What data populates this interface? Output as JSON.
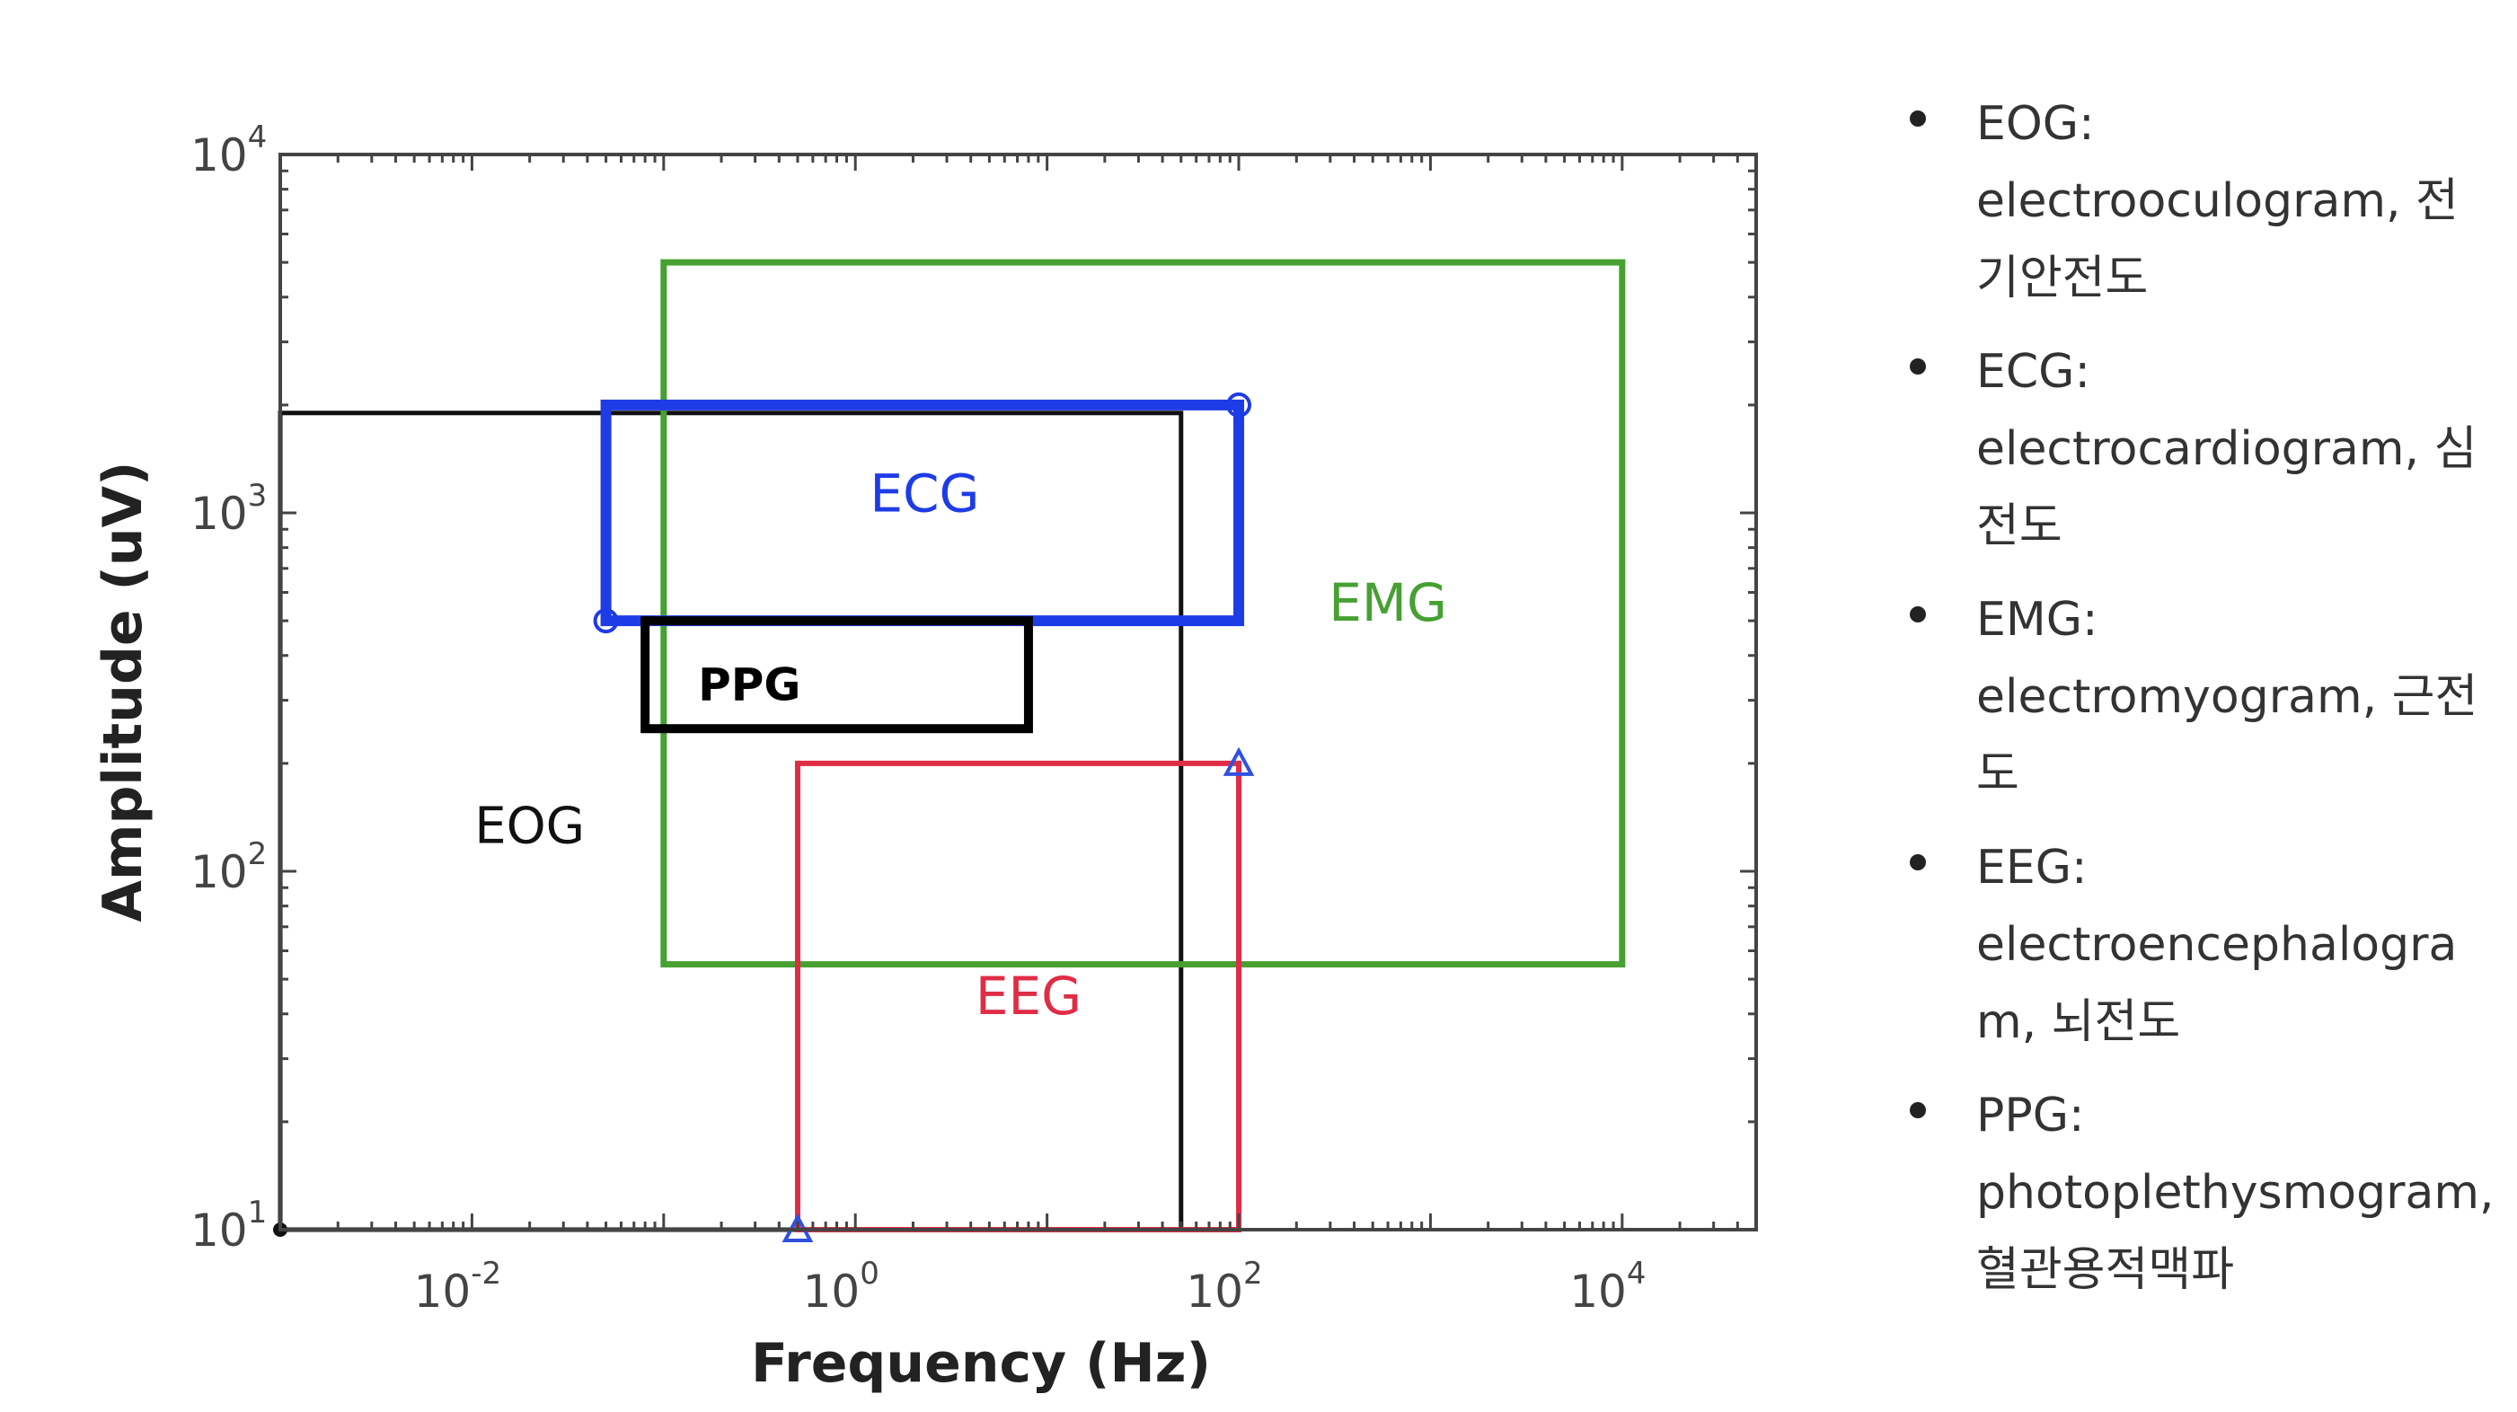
{
  "chart_data": {
    "type": "range-boxes",
    "xlabel": "Frequency (Hz)",
    "ylabel": "Amplitude (uV)",
    "x_scale": "log",
    "y_scale": "log",
    "xlim": [
      0.001,
      50000
    ],
    "ylim": [
      10,
      10000
    ],
    "x_ticks": [
      0.01,
      1,
      100,
      10000
    ],
    "y_ticks": [
      10,
      100,
      1000,
      10000
    ],
    "x_tick_labels": [
      {
        "base": "10",
        "exp": "-2"
      },
      {
        "base": "10",
        "exp": "0"
      },
      {
        "base": "10",
        "exp": "2"
      },
      {
        "base": "10",
        "exp": "4"
      }
    ],
    "y_tick_labels": [
      {
        "base": "10",
        "exp": "1"
      },
      {
        "base": "10",
        "exp": "2"
      },
      {
        "base": "10",
        "exp": "3"
      },
      {
        "base": "10",
        "exp": "4"
      }
    ],
    "grid": false,
    "series": [
      {
        "name": "EOG",
        "x_range": [
          0.001,
          50
        ],
        "y_range": [
          10,
          1900
        ],
        "color": "#111111"
      },
      {
        "name": "EMG",
        "x_range": [
          0.1,
          10000
        ],
        "y_range": [
          55,
          5000
        ],
        "color": "#46a032"
      },
      {
        "name": "ECG",
        "x_range": [
          0.05,
          100
        ],
        "y_range": [
          500,
          2000
        ],
        "color": "#1e3ce6"
      },
      {
        "name": "PPG",
        "x_range": [
          0.08,
          8
        ],
        "y_range": [
          250,
          500
        ],
        "color": "#000000"
      },
      {
        "name": "EEG",
        "x_range": [
          0.5,
          100
        ],
        "y_range": [
          10,
          200
        ],
        "color": "#e02d46"
      }
    ]
  },
  "legend": [
    {
      "term": "EOG:",
      "desc": "electrooculogram, 전기안전도"
    },
    {
      "term": "ECG:",
      "desc": "electrocardiogram, 심전도"
    },
    {
      "term": "EMG:",
      "desc": "electromyogram, 근전도"
    },
    {
      "term": "EEG:",
      "desc": "electroencephalogram, 뇌전도"
    },
    {
      "term": "PPG:",
      "desc": "photoplethysmogram, 혈관용적맥파"
    }
  ]
}
